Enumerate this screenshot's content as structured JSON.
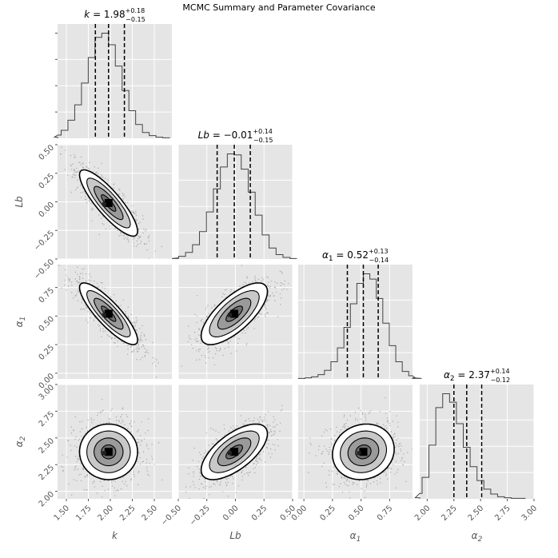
{
  "title": "MCMC Summary and Parameter Covariance",
  "colors": {
    "panel_bg": "#e5e5e5",
    "grid": "#ffffff",
    "histogram": "#444444",
    "contour": "#000000",
    "contour_fill_light": "#ffffff",
    "points": "#333333",
    "tick_text": "#555555",
    "quantile_line": "#000000"
  },
  "chart_data": {
    "type": "corner",
    "description_levels": "2D contour plots with scatter points and histograms on the diagonal",
    "parameters": [
      {
        "key": "k",
        "label": "k",
        "label_sub": "",
        "median": 1.98,
        "plus": 0.18,
        "minus": 0.15,
        "title_name": "k",
        "title_sub": "",
        "title_value": "1.98",
        "title_plus": "+0.18",
        "title_minus": "−0.15",
        "range": [
          1.4,
          2.7
        ],
        "ticks": [
          1.5,
          1.75,
          2.0,
          2.25,
          2.5
        ],
        "tick_labels": [
          "1.50",
          "1.75",
          "2.00",
          "2.25",
          "2.50"
        ],
        "hist_counts": [
          2,
          6,
          15,
          34,
          63,
          104,
          152,
          190,
          198,
          176,
          136,
          90,
          52,
          26,
          11,
          5,
          2,
          1
        ]
      },
      {
        "key": "Lb",
        "label": "Lb",
        "label_sub": "",
        "median": -0.01,
        "plus": 0.14,
        "minus": 0.15,
        "title_name": "Lb",
        "title_sub": "",
        "title_value": "−0.01",
        "title_plus": "+0.14",
        "title_minus": "−0.15",
        "range": [
          -0.5,
          0.5
        ],
        "ticks": [
          -0.5,
          -0.25,
          0.0,
          0.25,
          0.5
        ],
        "tick_labels": [
          "−0.50",
          "−0.25",
          "0.00",
          "0.25",
          "0.50"
        ],
        "hist_counts": [
          1,
          2,
          5,
          12,
          26,
          50,
          86,
          128,
          168,
          192,
          190,
          164,
          122,
          80,
          44,
          20,
          8,
          3,
          1,
          1
        ]
      },
      {
        "key": "a1",
        "label": "α",
        "label_sub": "1",
        "median": 0.52,
        "plus": 0.13,
        "minus": 0.14,
        "title_name": "α",
        "title_sub": "1",
        "title_value": "0.52",
        "title_plus": "+0.13",
        "title_minus": "−0.14",
        "range": [
          -0.05,
          0.95
        ],
        "ticks": [
          0.0,
          0.25,
          0.5,
          0.75
        ],
        "tick_labels": [
          "0.00",
          "0.25",
          "0.50",
          "0.75"
        ],
        "hist_counts": [
          1,
          2,
          4,
          8,
          16,
          32,
          58,
          96,
          140,
          178,
          196,
          186,
          150,
          104,
          62,
          32,
          14,
          6,
          2,
          1
        ]
      },
      {
        "key": "a2",
        "label": "α",
        "label_sub": "2",
        "median": 2.37,
        "plus": 0.14,
        "minus": 0.12,
        "title_name": "α",
        "title_sub": "2",
        "title_value": "2.37",
        "title_plus": "+0.14",
        "title_minus": "−0.12",
        "range": [
          1.93,
          3.0
        ],
        "ticks": [
          2.0,
          2.25,
          2.5,
          2.75,
          3.0
        ],
        "tick_labels": [
          "2.00",
          "2.25",
          "2.50",
          "2.75",
          "3.00"
        ],
        "hist_counts": [
          2,
          10,
          40,
          100,
          170,
          196,
          180,
          140,
          96,
          60,
          34,
          18,
          9,
          4,
          2,
          1,
          1
        ]
      }
    ],
    "pairs": [
      {
        "x": "k",
        "y": "Lb",
        "correlation": -0.85
      },
      {
        "x": "k",
        "y": "a1",
        "correlation": -0.85
      },
      {
        "x": "Lb",
        "y": "a1",
        "correlation": 0.72
      },
      {
        "x": "k",
        "y": "a2",
        "correlation": 0.0
      },
      {
        "x": "Lb",
        "y": "a2",
        "correlation": 0.65
      },
      {
        "x": "a1",
        "y": "a2",
        "correlation": 0.1
      }
    ],
    "contour_levels_sigma": [
      0.5,
      1.0,
      1.5,
      2.0
    ],
    "quantiles": [
      0.16,
      0.5,
      0.84
    ]
  }
}
